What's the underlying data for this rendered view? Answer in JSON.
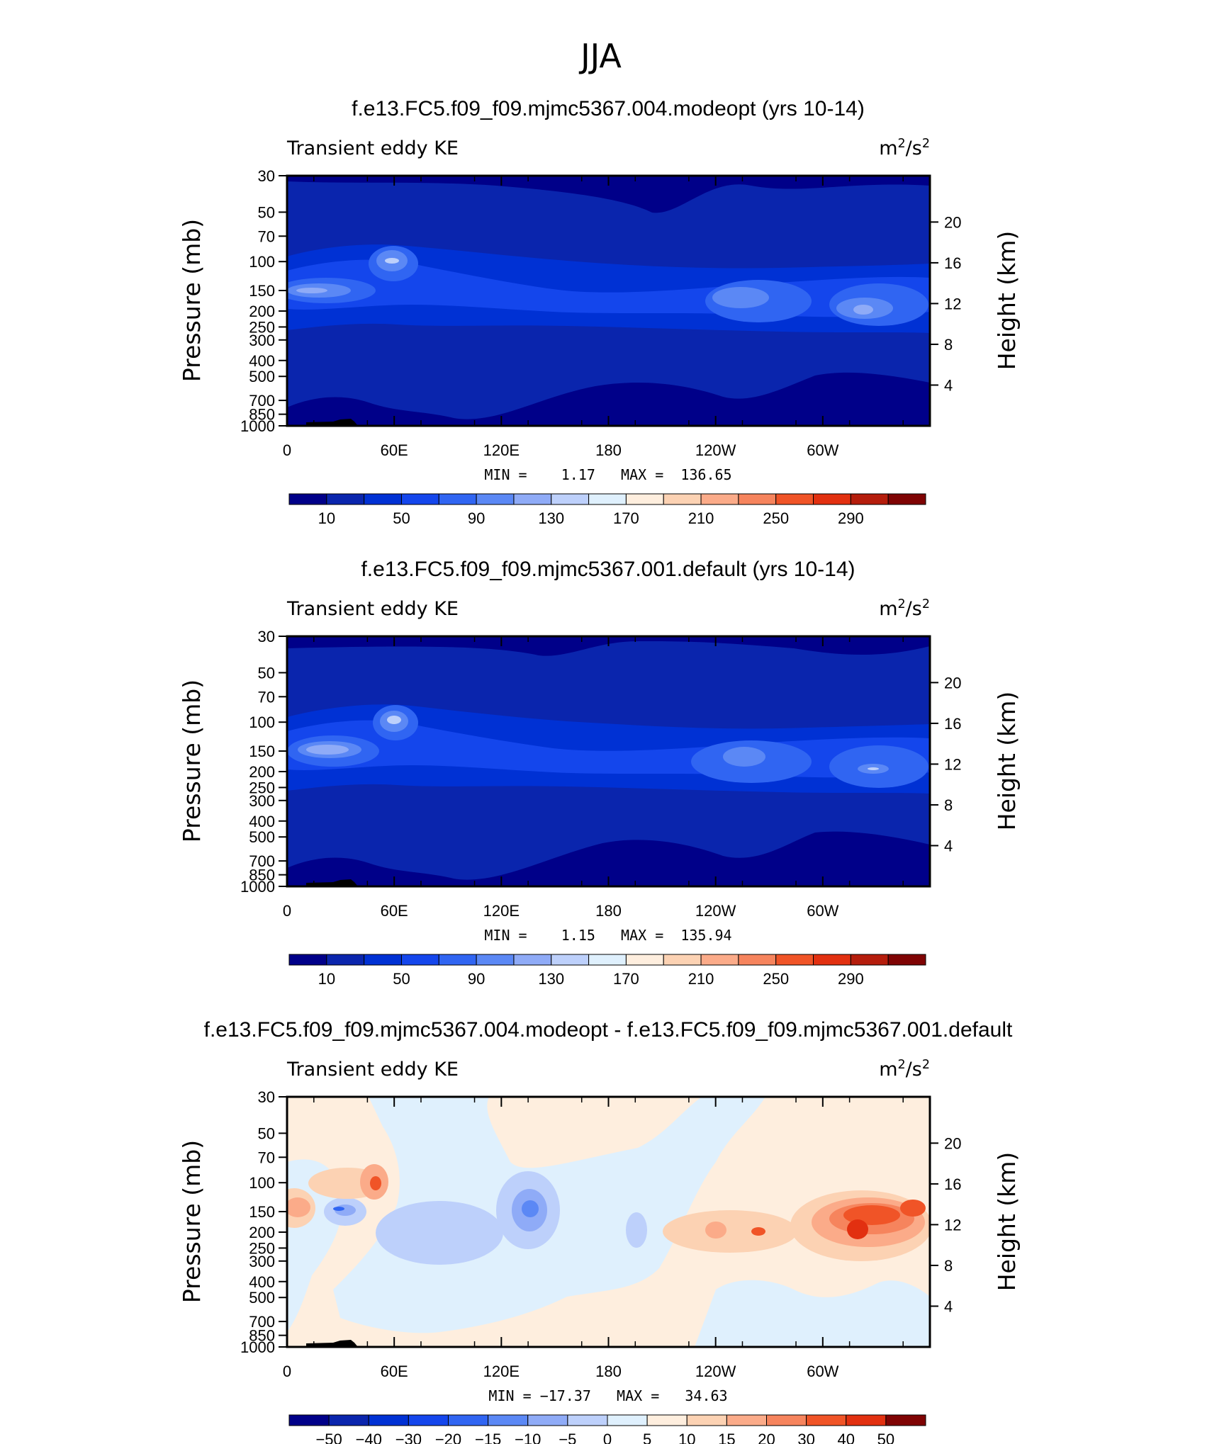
{
  "figure_title": "JJA",
  "chart_data": [
    {
      "type": "heatmap",
      "title": "f.e13.FC5.f09_f09.mjmc5367.004.modeopt (yrs 10-14)",
      "left_label": "Transient eddy KE",
      "units": "m²/s²",
      "ylabel": "Pressure (mb)",
      "ylabel_right": "Height (km)",
      "xticks": [
        "0",
        "60E",
        "120E",
        "180",
        "120W",
        "60W"
      ],
      "yticks": [
        "30",
        "50",
        "70",
        "100",
        "150",
        "200",
        "250",
        "300",
        "400",
        "500",
        "700",
        "850",
        "1000"
      ],
      "yticks_right": [
        "20",
        "16",
        "12",
        "8",
        "4"
      ],
      "stats": "MIN =    1.17   MAX =  136.65",
      "colorbar_labels": [
        "10",
        "50",
        "90",
        "130",
        "170",
        "210",
        "250",
        "290"
      ],
      "colorbar_colors": [
        "#000089",
        "#0a25ad",
        "#0031d4",
        "#1446ec",
        "#3065f2",
        "#5b88f5",
        "#8fabf7",
        "#bdd0fb",
        "#dff0fd",
        "#feeede",
        "#fcd2b3",
        "#fbab89",
        "#f6845d",
        "#f05427",
        "#e23010",
        "#b51d0c",
        "#7f0303"
      ]
    },
    {
      "type": "heatmap",
      "title": "f.e13.FC5.f09_f09.mjmc5367.001.default (yrs 10-14)",
      "left_label": "Transient eddy KE",
      "units": "m²/s²",
      "ylabel": "Pressure (mb)",
      "ylabel_right": "Height (km)",
      "xticks": [
        "0",
        "60E",
        "120E",
        "180",
        "120W",
        "60W"
      ],
      "yticks": [
        "30",
        "50",
        "70",
        "100",
        "150",
        "200",
        "250",
        "300",
        "400",
        "500",
        "700",
        "850",
        "1000"
      ],
      "yticks_right": [
        "20",
        "16",
        "12",
        "8",
        "4"
      ],
      "stats": "MIN =    1.15   MAX =  135.94",
      "colorbar_labels": [
        "10",
        "50",
        "90",
        "130",
        "170",
        "210",
        "250",
        "290"
      ],
      "colorbar_colors": [
        "#000089",
        "#0a25ad",
        "#0031d4",
        "#1446ec",
        "#3065f2",
        "#5b88f5",
        "#8fabf7",
        "#bdd0fb",
        "#dff0fd",
        "#feeede",
        "#fcd2b3",
        "#fbab89",
        "#f6845d",
        "#f05427",
        "#e23010",
        "#b51d0c",
        "#7f0303"
      ]
    },
    {
      "type": "heatmap",
      "title": "f.e13.FC5.f09_f09.mjmc5367.004.modeopt - f.e13.FC5.f09_f09.mjmc5367.001.default",
      "left_label": "Transient eddy KE",
      "units": "m²/s²",
      "ylabel": "Pressure (mb)",
      "ylabel_right": "Height (km)",
      "xticks": [
        "0",
        "60E",
        "120E",
        "180",
        "120W",
        "60W"
      ],
      "yticks": [
        "30",
        "50",
        "70",
        "100",
        "150",
        "200",
        "250",
        "300",
        "400",
        "500",
        "700",
        "850",
        "1000"
      ],
      "yticks_right": [
        "20",
        "16",
        "12",
        "8",
        "4"
      ],
      "stats": "MIN = −17.37   MAX =   34.63",
      "colorbar_labels": [
        "−50",
        "−40",
        "−30",
        "−20",
        "−15",
        "−10",
        "−5",
        "0",
        "5",
        "10",
        "15",
        "20",
        "30",
        "40",
        "50"
      ],
      "colorbar_colors": [
        "#000089",
        "#0a25ad",
        "#0031d4",
        "#1446ec",
        "#3065f2",
        "#5b88f5",
        "#8fabf7",
        "#bdd0fb",
        "#dff0fd",
        "#feeede",
        "#fcd2b3",
        "#fbab89",
        "#f6845d",
        "#f05427",
        "#e23010",
        "#7f0303"
      ]
    }
  ]
}
